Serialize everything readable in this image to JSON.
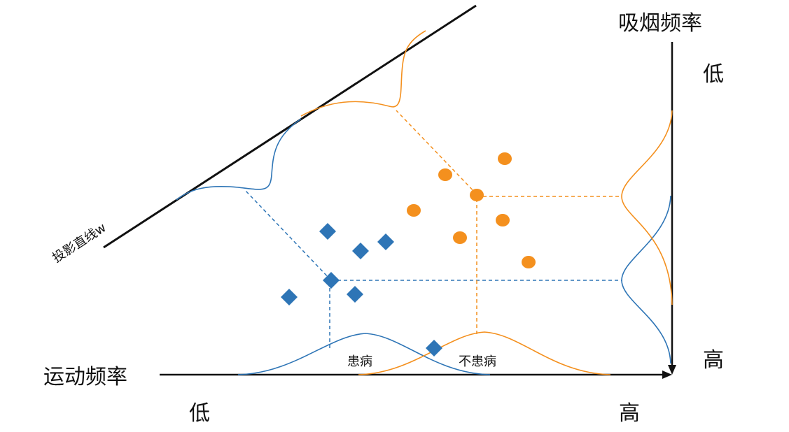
{
  "labels": {
    "smoking_axis": "吸烟频率",
    "exercise_axis": "运动频率",
    "projection_line": "投影直线w",
    "y_low": "低",
    "y_high": "高",
    "x_low": "低",
    "x_high": "高",
    "sick": "患病",
    "not_sick": "不患病"
  },
  "colors": {
    "sick": "#2e75b6",
    "not_sick": "#f4901e",
    "axis": "#111111"
  },
  "legend_marker_types": {
    "sick": "diamond",
    "not_sick": "circle"
  }
}
